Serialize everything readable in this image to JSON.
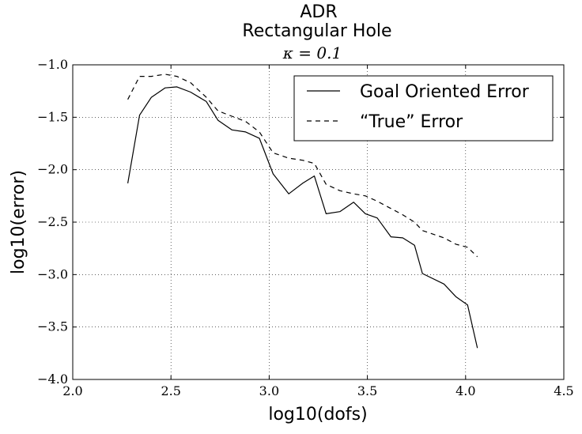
{
  "chart_data": {
    "type": "line",
    "title": "ADR",
    "subtitle": "Rectangular Hole",
    "subtitle2": "κ = 0.1",
    "xlabel": "log10(dofs)",
    "ylabel": "log10(error)",
    "xlim": [
      2.0,
      4.5
    ],
    "ylim": [
      -4.0,
      -1.0
    ],
    "xticks": [
      2.0,
      2.5,
      3.0,
      3.5,
      4.0,
      4.5
    ],
    "xtick_labels": [
      "2.0",
      "2.5",
      "3.0",
      "3.5",
      "4.0",
      "4.5"
    ],
    "yticks": [
      -4.0,
      -3.5,
      -3.0,
      -2.5,
      -2.0,
      -1.5,
      -1.0
    ],
    "ytick_labels": [
      "−4.0",
      "−3.5",
      "−3.0",
      "−2.5",
      "−2.0",
      "−1.5",
      "−1.0"
    ],
    "grid": true,
    "legend_position": "top-right",
    "series": [
      {
        "name": "Goal Oriented Error",
        "style": "solid",
        "color": "#000000",
        "x": [
          2.28,
          2.34,
          2.4,
          2.47,
          2.53,
          2.6,
          2.68,
          2.74,
          2.81,
          2.88,
          2.95,
          3.02,
          3.1,
          3.17,
          3.23,
          3.29,
          3.36,
          3.43,
          3.49,
          3.55,
          3.62,
          3.68,
          3.74,
          3.78,
          3.89,
          3.95,
          4.01,
          4.06
        ],
        "y": [
          -2.13,
          -1.48,
          -1.31,
          -1.22,
          -1.21,
          -1.26,
          -1.35,
          -1.53,
          -1.62,
          -1.64,
          -1.7,
          -2.04,
          -2.23,
          -2.13,
          -2.06,
          -2.42,
          -2.4,
          -2.31,
          -2.42,
          -2.46,
          -2.64,
          -2.65,
          -2.72,
          -2.99,
          -3.09,
          -3.21,
          -3.29,
          -3.7
        ]
      },
      {
        "name": "“True” Error",
        "style": "dashed",
        "color": "#000000",
        "x": [
          2.28,
          2.34,
          2.4,
          2.47,
          2.53,
          2.6,
          2.68,
          2.74,
          2.81,
          2.88,
          2.95,
          3.02,
          3.1,
          3.17,
          3.23,
          3.29,
          3.36,
          3.43,
          3.49,
          3.55,
          3.62,
          3.68,
          3.74,
          3.78,
          3.89,
          3.95,
          4.01,
          4.06
        ],
        "y": [
          -1.33,
          -1.11,
          -1.11,
          -1.09,
          -1.11,
          -1.17,
          -1.31,
          -1.44,
          -1.49,
          -1.54,
          -1.64,
          -1.84,
          -1.89,
          -1.91,
          -1.94,
          -2.14,
          -2.2,
          -2.23,
          -2.25,
          -2.3,
          -2.37,
          -2.43,
          -2.5,
          -2.58,
          -2.65,
          -2.71,
          -2.74,
          -2.83
        ]
      }
    ]
  }
}
